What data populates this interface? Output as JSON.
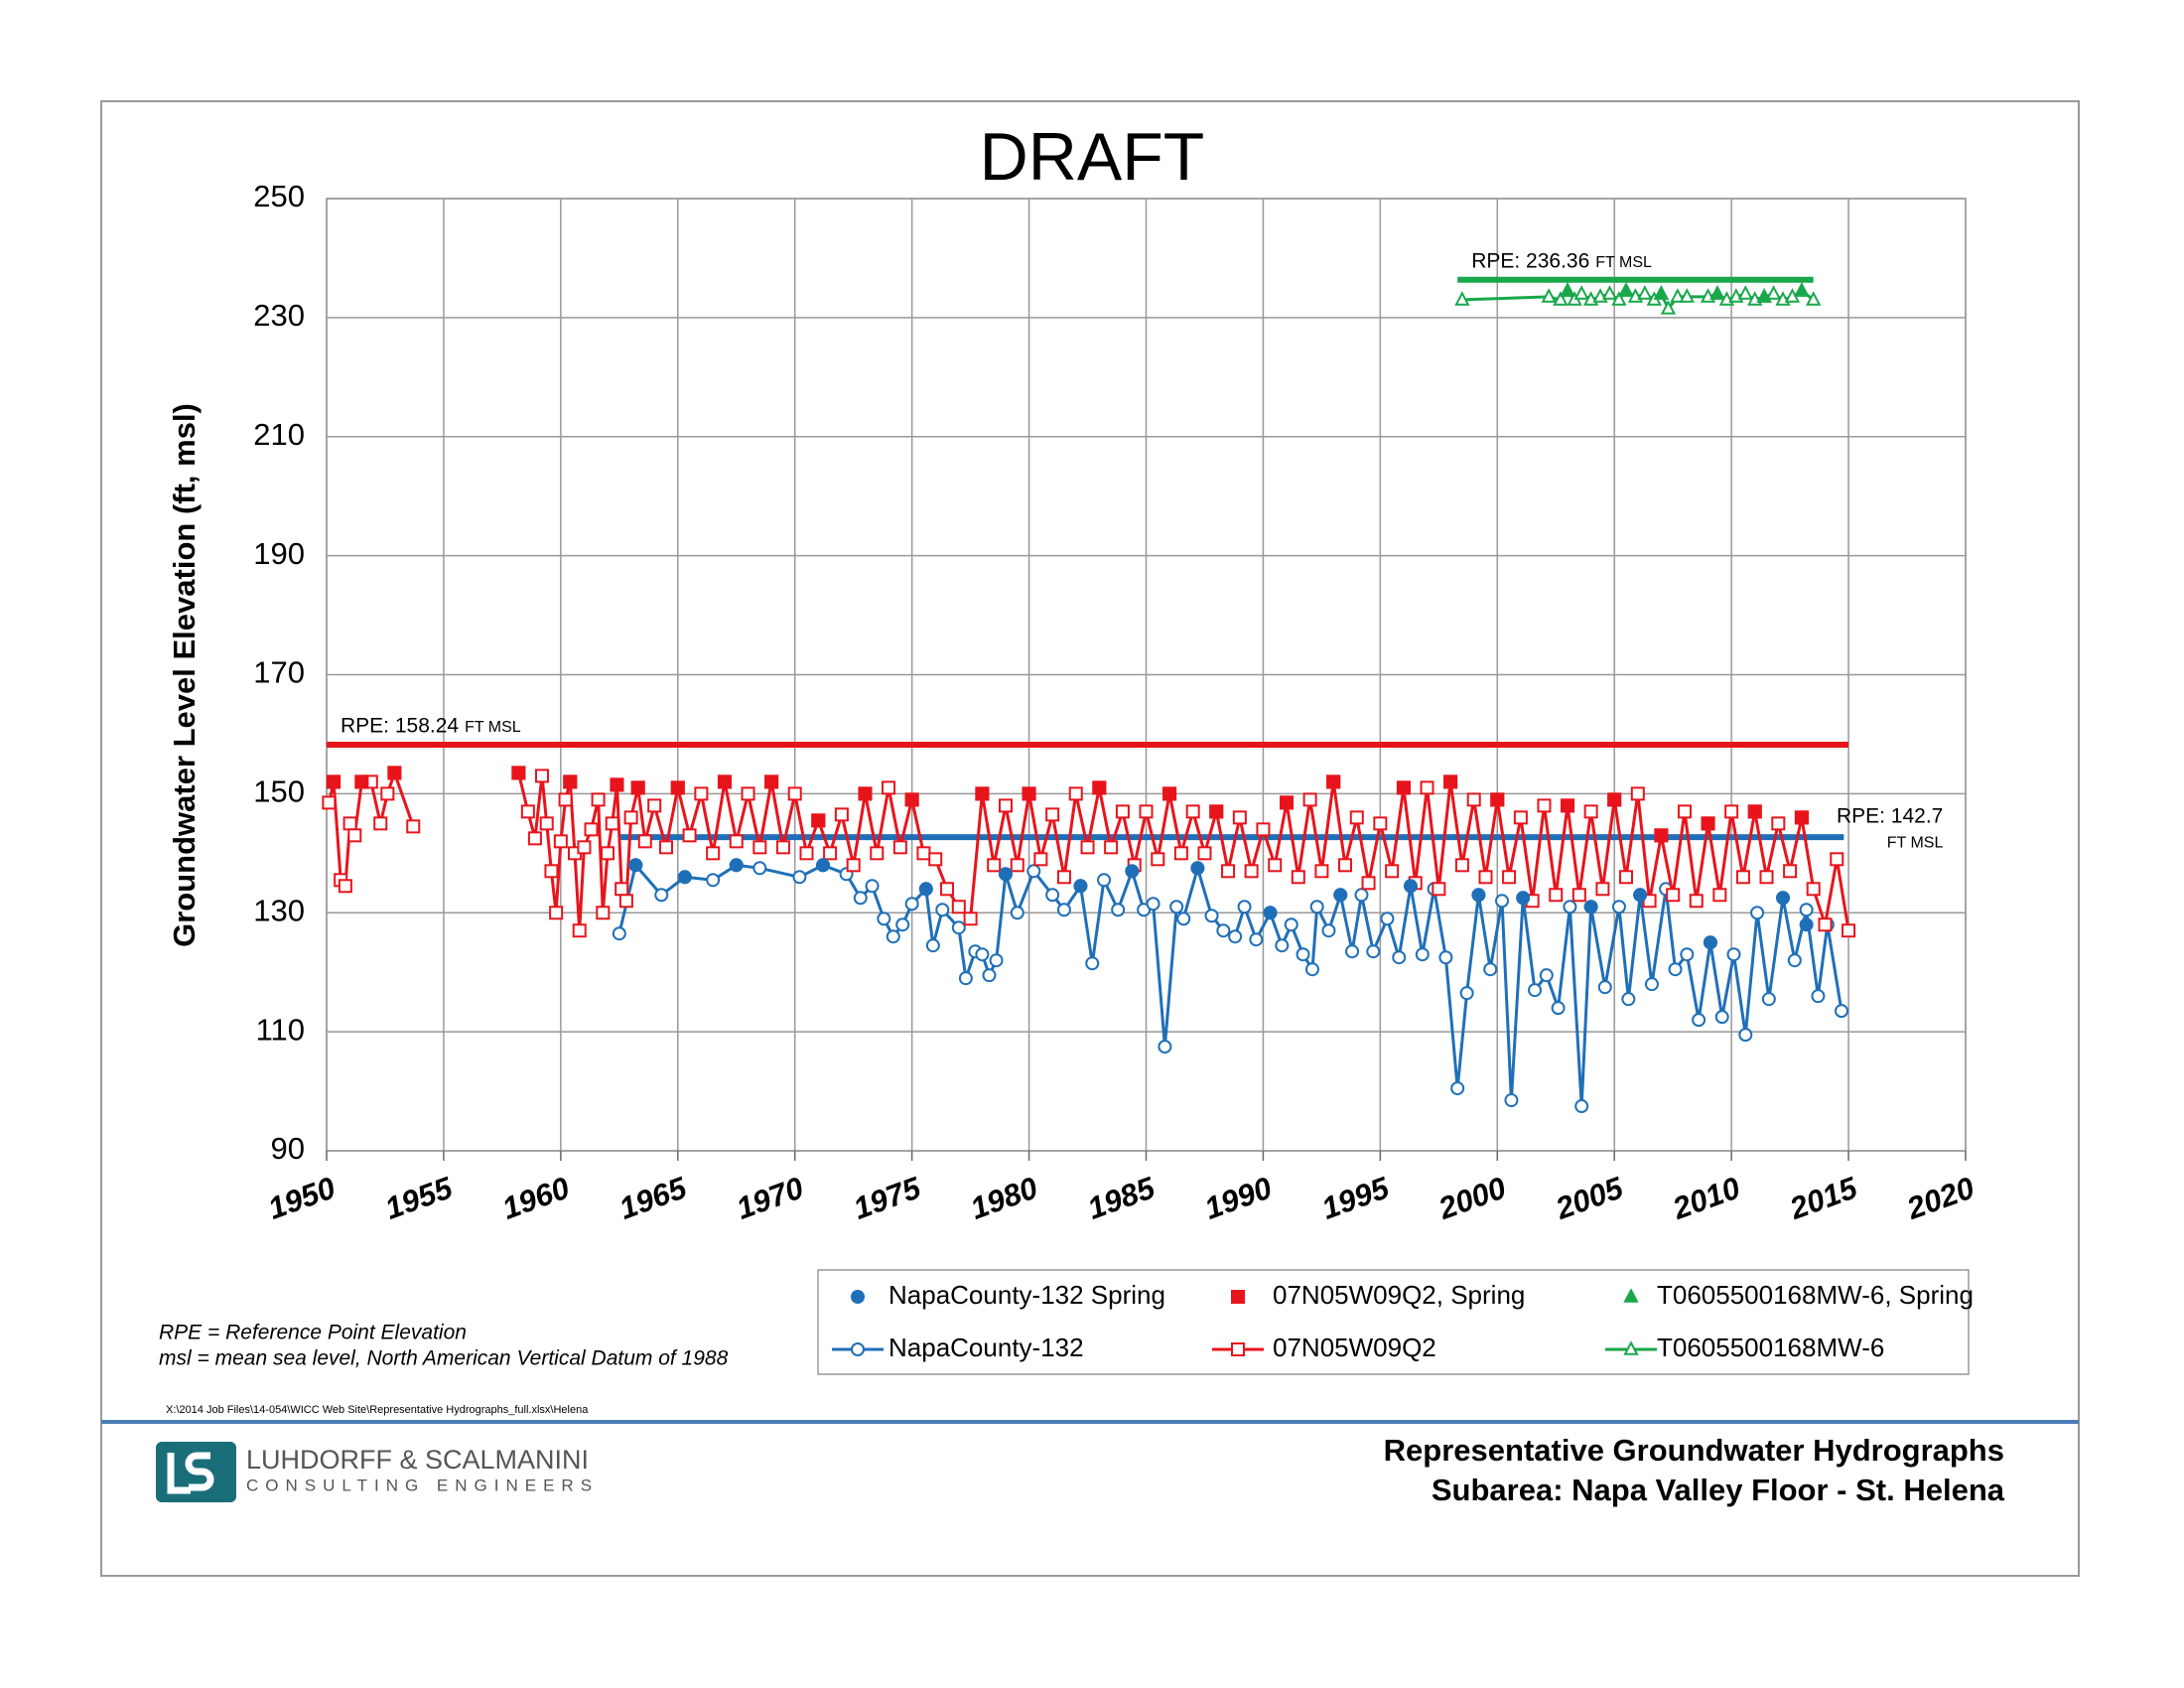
{
  "chart_data": {
    "type": "line",
    "title": "DRAFT",
    "y_label": "Groundwater Level Elevation (ft, msl)",
    "xlim": [
      1950,
      2020
    ],
    "xticks": [
      1950,
      1955,
      1960,
      1965,
      1970,
      1975,
      1980,
      1985,
      1990,
      1995,
      2000,
      2005,
      2010,
      2015,
      2020
    ],
    "ylim": [
      90,
      250
    ],
    "yticks": [
      90,
      110,
      130,
      150,
      170,
      190,
      210,
      230,
      250
    ],
    "grid": true,
    "series": [
      {
        "name": "NapaCounty-132 Spring",
        "color": "#1f6fb8",
        "marker": "circle",
        "filled": true,
        "line": false,
        "x": [
          1963.2,
          1965.3,
          1967.5,
          1971.2,
          1975.6,
          1979,
          1982.2,
          1984.4,
          1987.2,
          1990.3,
          1993.3,
          1996.3,
          1999.2,
          2001.1,
          2004,
          2006.1,
          2009.1,
          2012.2,
          2013.2
        ],
        "values": [
          138,
          136,
          138,
          138,
          134,
          136.5,
          134.5,
          137,
          137.5,
          130,
          133,
          134.5,
          133,
          132.5,
          131,
          133,
          125,
          132.5,
          128
        ]
      },
      {
        "name": "07N05W09Q2, Spring",
        "color": "#e8141c",
        "marker": "square",
        "filled": true,
        "line": false,
        "x": [
          1950.3,
          1951.5,
          1952.9,
          1958.2,
          1960.4,
          1962.4,
          1963.3,
          1965,
          1967,
          1969,
          1971,
          1973,
          1975,
          1978,
          1980,
          1983,
          1986,
          1988,
          1991,
          1993,
          1996,
          1998,
          2000,
          2003,
          2005,
          2007,
          2009,
          2011,
          2013
        ],
        "values": [
          152,
          152,
          153.5,
          153.5,
          152,
          151.5,
          151,
          151,
          152,
          152,
          145.5,
          150,
          149,
          150,
          150,
          151,
          150,
          147,
          148.5,
          152,
          151,
          152,
          149,
          148,
          149,
          143,
          145,
          147,
          146
        ]
      },
      {
        "name": "T0605500168MW-6, Spring",
        "color": "#18a84a",
        "marker": "triangle",
        "filled": true,
        "line": false,
        "x": [
          2003,
          2005.5,
          2007,
          2009.4,
          2011.4,
          2013
        ],
        "values": [
          234.5,
          234.5,
          234,
          234,
          233.5,
          234.5
        ]
      },
      {
        "name": "NapaCounty-132",
        "color": "#1f6fb8",
        "marker": "circle",
        "filled": false,
        "line": true,
        "x": [
          1962.5,
          1963.2,
          1964.3,
          1965.3,
          1966.5,
          1967.5,
          1968.5,
          1970.2,
          1971.2,
          1972.2,
          1972.8,
          1973.3,
          1973.8,
          1974.2,
          1974.6,
          1975,
          1975.6,
          1975.9,
          1976.3,
          1977,
          1977.3,
          1977.7,
          1978,
          1978.3,
          1978.6,
          1979,
          1979.5,
          1980.2,
          1981,
          1981.5,
          1982.2,
          1982.7,
          1983.2,
          1983.8,
          1984.4,
          1984.9,
          1985.3,
          1985.8,
          1986.3,
          1986.6,
          1987.2,
          1987.8,
          1988.3,
          1988.8,
          1989.2,
          1989.7,
          1990.3,
          1990.8,
          1991.2,
          1991.7,
          1992.1,
          1992.3,
          1992.8,
          1993.3,
          1993.8,
          1994.2,
          1994.7,
          1995.3,
          1995.8,
          1996.3,
          1996.8,
          1997.3,
          1997.8,
          1998.3,
          1998.7,
          1999.2,
          1999.7,
          2000.2,
          2000.6,
          2001.1,
          2001.6,
          2002.1,
          2002.6,
          2003.1,
          2003.6,
          2004,
          2004.6,
          2005.2,
          2005.6,
          2006.1,
          2006.6,
          2007.2,
          2007.6,
          2008.1,
          2008.6,
          2009.1,
          2009.6,
          2010.1,
          2010.6,
          2011.1,
          2011.6,
          2012.2,
          2012.7,
          2013.2,
          2013.7,
          2014.1,
          2014.7
        ],
        "values": [
          126.5,
          138,
          133,
          136,
          135.5,
          138,
          137.5,
          136,
          138,
          136.5,
          132.5,
          134.5,
          129,
          126,
          128,
          131.5,
          134,
          124.5,
          130.5,
          127.5,
          119,
          123.5,
          123,
          119.5,
          122,
          136.5,
          130,
          137,
          133,
          130.5,
          134.5,
          121.5,
          135.5,
          130.5,
          137,
          130.5,
          131.5,
          107.5,
          131,
          129,
          137.5,
          129.5,
          127,
          126,
          131,
          125.5,
          130,
          124.5,
          128,
          123,
          120.5,
          131,
          127,
          133,
          123.5,
          133,
          123.5,
          129,
          122.5,
          134.5,
          123,
          134,
          122.5,
          100.5,
          116.5,
          133,
          120.5,
          132,
          98.5,
          132.5,
          117,
          119.5,
          114,
          131,
          97.5,
          131,
          117.5,
          131,
          115.5,
          133,
          118,
          134,
          120.5,
          123,
          112,
          125,
          112.5,
          123,
          109.5,
          130,
          115.5,
          132.5,
          122,
          130.5,
          116,
          128,
          113.5
        ]
      },
      {
        "name": "07N05W09Q2",
        "color": "#e8141c",
        "marker": "square",
        "filled": false,
        "line": true,
        "x": [
          1950.1,
          1950.3,
          1950.6,
          1950.8,
          1951,
          1951.2,
          1951.5,
          1951.9,
          1952.3,
          1952.6,
          1952.9,
          1953.7,
          null,
          1958.2,
          1958.6,
          1958.9,
          1959.2,
          1959.4,
          1959.6,
          1959.8,
          1960,
          1960.2,
          1960.4,
          1960.6,
          1960.8,
          1961,
          1961.3,
          1961.6,
          1961.8,
          1962,
          1962.2,
          1962.4,
          1962.6,
          1962.8,
          1963,
          1963.3,
          1963.6,
          1964,
          1964.5,
          1965,
          1965.5,
          1966,
          1966.5,
          1967,
          1967.5,
          1968,
          1968.5,
          1969,
          1969.5,
          1970,
          1970.5,
          1971,
          1971.5,
          1972,
          1972.5,
          1973,
          1973.5,
          1974,
          1974.5,
          1975,
          1975.5,
          1976,
          1976.5,
          1977,
          1977.5,
          1978,
          1978.5,
          1979,
          1979.5,
          1980,
          1980.5,
          1981,
          1981.5,
          1982,
          1982.5,
          1983,
          1983.5,
          1984,
          1984.5,
          1985,
          1985.5,
          1986,
          1986.5,
          1987,
          1987.5,
          1988,
          1988.5,
          1989,
          1989.5,
          1990,
          1990.5,
          1991,
          1991.5,
          1992,
          1992.5,
          1993,
          1993.5,
          1994,
          1994.5,
          1995,
          1995.5,
          1996,
          1996.5,
          1997,
          1997.5,
          1998,
          1998.5,
          1999,
          1999.5,
          2000,
          2000.5,
          2001,
          2001.5,
          2002,
          2002.5,
          2003,
          2003.5,
          2004,
          2004.5,
          2005,
          2005.5,
          2006,
          2006.5,
          2007,
          2007.5,
          2008,
          2008.5,
          2009,
          2009.5,
          2010,
          2010.5,
          2011,
          2011.5,
          2012,
          2012.5,
          2013,
          2013.5,
          2014,
          2014.5,
          2015
        ],
        "values": [
          148.5,
          152,
          135.5,
          134.5,
          145,
          143,
          152,
          152,
          145,
          150,
          153.5,
          144.5,
          null,
          153.5,
          147,
          142.5,
          153,
          145,
          137,
          130,
          142,
          149,
          152,
          140,
          127,
          141,
          144,
          149,
          130,
          140,
          145,
          151.5,
          134,
          132,
          146,
          151,
          142,
          148,
          141,
          151,
          143,
          150,
          140,
          152,
          142,
          150,
          141,
          152,
          141,
          150,
          140,
          145.5,
          140,
          146.5,
          138,
          150,
          140,
          151,
          141,
          149,
          140,
          139,
          134,
          131,
          129,
          150,
          138,
          148,
          138,
          150,
          139,
          146.5,
          136,
          150,
          141,
          151,
          141,
          147,
          138,
          147,
          139,
          150,
          140,
          147,
          140,
          147,
          137,
          146,
          137,
          144,
          138,
          148.5,
          136,
          149,
          137,
          152,
          138,
          146,
          135,
          145,
          137,
          151,
          135,
          151,
          134,
          152,
          138,
          149,
          136,
          149,
          136,
          146,
          132,
          148,
          133,
          148,
          133,
          147,
          134,
          149,
          136,
          150,
          132,
          143,
          133,
          147,
          132,
          145,
          133,
          147,
          136,
          147,
          136,
          145,
          137,
          146,
          134,
          128,
          139,
          127
        ]
      },
      {
        "name": "T0605500168MW-6",
        "color": "#18a84a",
        "marker": "triangle",
        "filled": false,
        "line": true,
        "x": [
          1998.5,
          2002.2,
          2002.7,
          2003,
          2003.3,
          2003.6,
          2004,
          2004.4,
          2004.8,
          2005.2,
          2005.5,
          2005.9,
          2006.3,
          2006.7,
          2007,
          2007.3,
          2007.7,
          2008.1,
          2009,
          2009.4,
          2009.8,
          2010.2,
          2010.6,
          2011,
          2011.4,
          2011.8,
          2012.2,
          2012.6,
          2013,
          2013.5
        ],
        "values": [
          233,
          233.5,
          233,
          234.5,
          233,
          234,
          233,
          233.5,
          234,
          233,
          234.5,
          233.5,
          234,
          233,
          234,
          231.5,
          233.5,
          233.5,
          233.5,
          234,
          233,
          233.5,
          234,
          233,
          233.5,
          234,
          233,
          233.5,
          234.5,
          233
        ]
      }
    ],
    "reference_lines": [
      {
        "label": "RPE: 158.24",
        "unit": "FT MSL",
        "value": 158.24,
        "color": "#e8141c",
        "x": [
          1950,
          2015
        ]
      },
      {
        "label": "RPE: 142.7",
        "unit": "FT MSL",
        "value": 142.7,
        "color": "#1f6fb8",
        "x": [
          1962.5,
          2014.8
        ]
      },
      {
        "label": "RPE: 236.36",
        "unit": "FT MSL",
        "value": 236.36,
        "color": "#18a84a",
        "x": [
          1998.3,
          2013.5
        ]
      }
    ]
  },
  "notes": [
    "RPE = Reference Point Elevation",
    "msl = mean sea level, North American Vertical Datum of 1988"
  ],
  "file_path": "X:\\2014 Job Files\\14-054\\WICC Web Site\\Representative Hydrographs_full.xlsx\\Helena",
  "footer": {
    "company": "LUHDORFF & SCALMANINI",
    "company_sub": "CONSULTING ENGINEERS",
    "title_lines": [
      "Representative Groundwater Hydrographs",
      "Subarea: Napa Valley Floor - St. Helena"
    ]
  }
}
